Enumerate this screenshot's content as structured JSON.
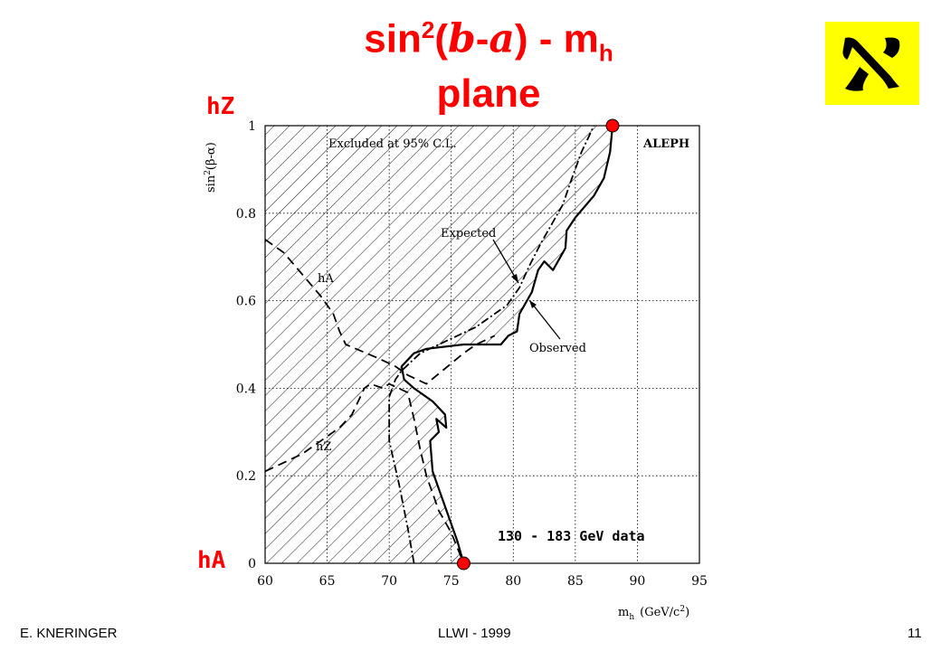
{
  "slide": {
    "title_prefix": "sin",
    "title_sup": "2",
    "title_paren_open": "(",
    "title_beta": "b",
    "title_minus": "-",
    "title_alpha": "a",
    "title_paren_close": ")",
    "title_dash": " - m",
    "title_sub": "h",
    "title_line2": "plane",
    "label_hz": "hZ",
    "label_ha": "hA",
    "footer_left": "E. KNERINGER",
    "footer_center": "LLWI - 1999",
    "footer_right": "11",
    "logo_icon": "aleph-letter-icon",
    "colors": {
      "accent": "#ff0000",
      "logo_bg": "#ffff00"
    }
  },
  "chart_data": {
    "type": "line",
    "xlabel": "m",
    "xlabel_sub": "h",
    "xlabel_units": "(GeV/c",
    "xlabel_units_sup": "2",
    "xlabel_units_close": ")",
    "ylabel": "sin",
    "ylabel_sup": "2",
    "ylabel_rest": "(β-α)",
    "xlim": [
      60,
      95
    ],
    "ylim": [
      0,
      1
    ],
    "x_ticks": [
      "60",
      "65",
      "70",
      "75",
      "80",
      "85",
      "90",
      "95"
    ],
    "y_ticks": [
      "0",
      "0.2",
      "0.4",
      "0.6",
      "0.8",
      "1"
    ],
    "grid": true,
    "annotations": {
      "excluded": "Excluded at 95% C.L.",
      "experiment": "ALEPH",
      "expected": "Expected",
      "observed": "Observed",
      "ha_curve": "hA",
      "hz_curve": "hZ",
      "data_note": "130 - 183 GeV data"
    },
    "series": [
      {
        "name": "Observed",
        "style": "solid",
        "x": [
          76.0,
          75.5,
          74.5,
          73.5,
          73.3,
          74.0,
          73.8,
          74.6,
          74.5,
          73.5,
          72.0,
          71.2,
          71.0,
          72.0,
          73.0,
          76.0,
          79.0,
          79.6,
          80.3,
          80.5,
          81.5,
          82.0,
          82.5,
          83.2,
          84.2,
          84.3,
          85.0,
          86.5,
          87.3,
          87.8,
          88.0
        ],
        "y": [
          0.0,
          0.05,
          0.13,
          0.21,
          0.28,
          0.3,
          0.33,
          0.31,
          0.34,
          0.37,
          0.4,
          0.42,
          0.45,
          0.48,
          0.49,
          0.5,
          0.5,
          0.52,
          0.53,
          0.57,
          0.62,
          0.67,
          0.69,
          0.67,
          0.72,
          0.76,
          0.79,
          0.84,
          0.88,
          0.94,
          1.0
        ]
      },
      {
        "name": "Expected",
        "style": "dashdot",
        "x": [
          72.0,
          71.5,
          70.8,
          70.0,
          70.0,
          70.5,
          71.0,
          72.5,
          74.0,
          77.0,
          79.5,
          80.5,
          81.3,
          82.2,
          83.0,
          84.0,
          84.6,
          85.5,
          86.5
        ],
        "y": [
          0.0,
          0.08,
          0.18,
          0.28,
          0.38,
          0.42,
          0.44,
          0.48,
          0.5,
          0.54,
          0.59,
          0.63,
          0.68,
          0.73,
          0.77,
          0.82,
          0.87,
          0.94,
          1.0
        ]
      },
      {
        "name": "hA",
        "style": "dashed",
        "x": [
          60.0,
          61.5,
          63.0,
          64.5,
          65.5,
          66.0,
          66.5,
          69.0,
          70.5,
          71.5,
          73.0,
          76.0,
          77.0,
          78.5
        ],
        "y": [
          0.74,
          0.71,
          0.66,
          0.61,
          0.57,
          0.53,
          0.5,
          0.47,
          0.45,
          0.43,
          0.41,
          0.48,
          0.5,
          0.52
        ]
      },
      {
        "name": "hZ",
        "style": "dashed",
        "x": [
          60.0,
          61.5,
          63.0,
          64.0,
          65.0,
          66.0,
          67.0,
          67.5,
          68.0,
          68.5,
          69.5,
          70.0,
          71.5,
          72.0,
          72.5,
          73.0,
          73.5,
          74.0,
          75.0,
          76.0
        ],
        "y": [
          0.21,
          0.23,
          0.25,
          0.27,
          0.29,
          0.31,
          0.34,
          0.37,
          0.4,
          0.41,
          0.4,
          0.41,
          0.39,
          0.33,
          0.26,
          0.2,
          0.16,
          0.12,
          0.07,
          0.0
        ]
      }
    ],
    "endpoints": [
      {
        "x": 76.0,
        "y": 0.0
      },
      {
        "x": 88.0,
        "y": 1.0
      }
    ]
  }
}
